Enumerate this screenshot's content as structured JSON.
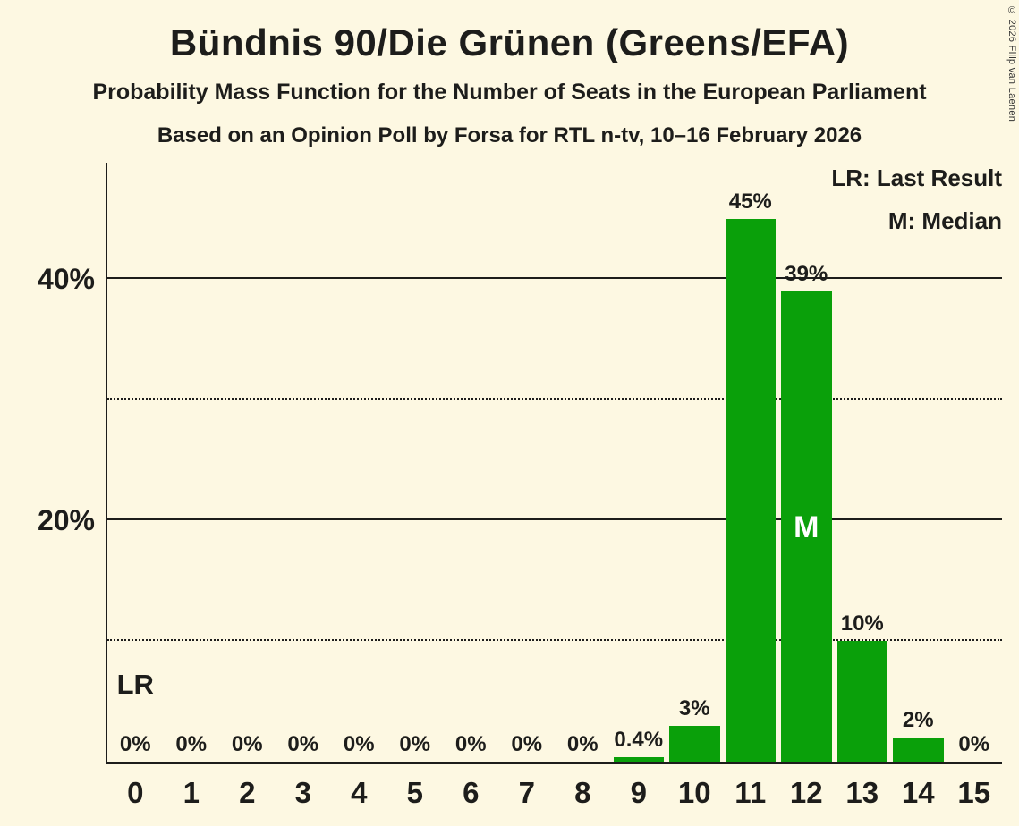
{
  "title": "Bündnis 90/Die Grünen (Greens/EFA)",
  "subtitle": "Probability Mass Function for the Number of Seats in the European Parliament",
  "poll_line": "Based on an Opinion Poll by Forsa for RTL n-tv, 10–16 February 2026",
  "copyright": "© 2026 Filip van Laenen",
  "legend": {
    "lr": "LR: Last Result",
    "m": "M: Median"
  },
  "colors": {
    "background": "#fdf8e2",
    "bar": "#0aa00a",
    "text": "#1d1d1b",
    "median_text": "#ffffff"
  },
  "chart_data": {
    "type": "bar",
    "title": "Bündnis 90/Die Grünen (Greens/EFA)",
    "subtitle": "Probability Mass Function for the Number of Seats in the European Parliament",
    "source": "Based on an Opinion Poll by Forsa for RTL n-tv, 10–16 February 2026",
    "xlabel": "",
    "ylabel": "",
    "categories": [
      "0",
      "1",
      "2",
      "3",
      "4",
      "5",
      "6",
      "7",
      "8",
      "9",
      "10",
      "11",
      "12",
      "13",
      "14",
      "15"
    ],
    "values": [
      0,
      0,
      0,
      0,
      0,
      0,
      0,
      0,
      0,
      0.4,
      3,
      45,
      39,
      10,
      2,
      0
    ],
    "bar_labels": [
      "0%",
      "0%",
      "0%",
      "0%",
      "0%",
      "0%",
      "0%",
      "0%",
      "0%",
      "0.4%",
      "3%",
      "45%",
      "39%",
      "10%",
      "2%",
      "0%"
    ],
    "yticks": [
      {
        "value": 20,
        "label": "20%"
      },
      {
        "value": 40,
        "label": "40%"
      }
    ],
    "gridlines": {
      "solid_pct": [
        20,
        40
      ],
      "dotted_pct": [
        10,
        30
      ]
    },
    "ylim": [
      0,
      49.6
    ],
    "median": {
      "seat": "12",
      "label": "M"
    },
    "last_result": {
      "seat": "0",
      "label": "LR"
    },
    "legend_position": "top-right",
    "grid": "horizontal-only"
  }
}
